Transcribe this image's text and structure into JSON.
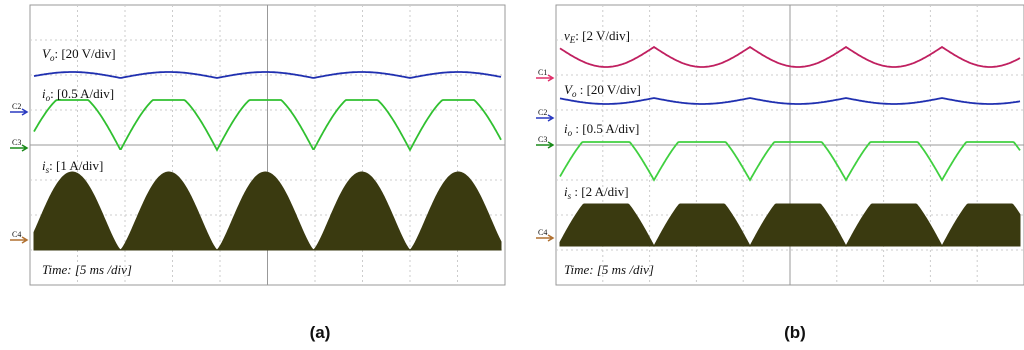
{
  "panels": [
    {
      "caption": "(a)",
      "channels": [
        "C2",
        "C3",
        "C4"
      ],
      "traces": [
        {
          "sym": "V",
          "sub": "o",
          "text": ": [20 V/div]"
        },
        {
          "sym": "i",
          "sub": "o",
          "text": ": [0.5 A/div]"
        },
        {
          "sym": "i",
          "sub": "s",
          "text": ": [1 A/div]"
        }
      ],
      "time": "Time: [5 ms /div]"
    },
    {
      "caption": "(b)",
      "channels": [
        "C1",
        "C2",
        "C3",
        "C4"
      ],
      "traces": [
        {
          "sym": "v",
          "sub": "E",
          "text": ": [2 V/div]"
        },
        {
          "sym": "V",
          "sub": "o",
          "text": " : [20 V/div]"
        },
        {
          "sym": "i",
          "sub": "o",
          "text": " : [0.5 A/div]"
        },
        {
          "sym": "i",
          "sub": "s",
          "text": " : [2 A/div]"
        }
      ],
      "time": "Time: [5 ms /div]"
    }
  ]
}
